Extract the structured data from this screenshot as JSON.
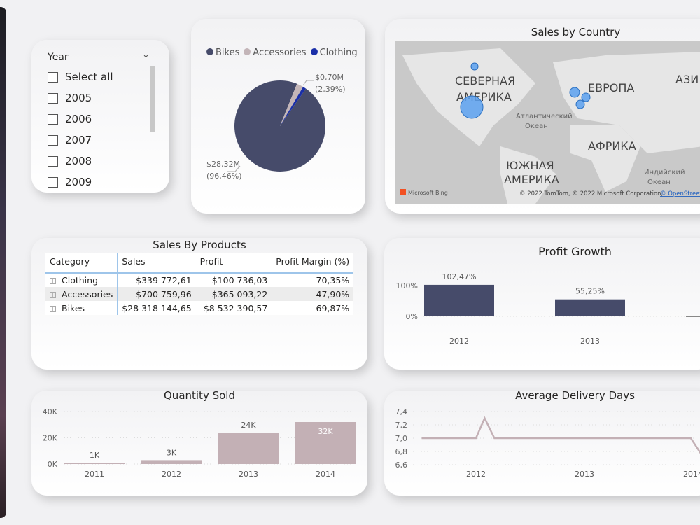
{
  "slicer": {
    "title": "Year",
    "items": [
      "Select all",
      "2005",
      "2006",
      "2007",
      "2008",
      "2009"
    ]
  },
  "pie": {
    "legend": [
      {
        "name": "Bikes",
        "color": "#464b6a"
      },
      {
        "name": "Accessories",
        "color": "#c3b5b8"
      },
      {
        "name": "Clothing",
        "color": "#1a2fa8"
      }
    ],
    "chart_data": {
      "type": "pie",
      "labels": [
        "Bikes",
        "Accessories",
        "Clothing"
      ],
      "values": [
        96.46,
        2.39,
        1.15
      ],
      "data_labels": [
        {
          "value": "$28,32M",
          "pct": "(96,46%)"
        },
        {
          "value": "$0,70M",
          "pct": "(2,39%)"
        }
      ]
    }
  },
  "map": {
    "title": "Sales by Country",
    "labels": [
      "СЕВЕРНАЯ",
      "АМЕРИКА",
      "ЕВРОПА",
      "АЗИ",
      "АФРИКА",
      "ЮЖНАЯ",
      "АМЕРИКА",
      "Атлантический",
      "Океан",
      "Индийский",
      "Океан"
    ],
    "brand": "Microsoft Bing",
    "copyright": "© 2022 TomTom, © 2022 Microsoft Corporation, ",
    "osm": "© OpenStreet",
    "bubble_color": "#5aa0ef"
  },
  "table": {
    "title": "Sales By Products",
    "columns": [
      "Category",
      "Sales",
      "Profit",
      "Profit Margin (%)"
    ],
    "rows": [
      [
        "Clothing",
        "$339 772,61",
        "$100 736,03",
        "70,35%"
      ],
      [
        "Accessories",
        "$700 759,96",
        "$365 093,22",
        "47,90%"
      ],
      [
        "Bikes",
        "$28 318 144,65",
        "$8 532 390,57",
        "69,87%"
      ]
    ]
  },
  "chart_data": [
    {
      "type": "bar",
      "title": "Profit Growth",
      "categories": [
        "2012",
        "2013"
      ],
      "values": [
        102.47,
        55.25
      ],
      "data_labels": [
        "102,47%",
        "55,25%"
      ],
      "yticks": [
        "100%",
        "0%"
      ],
      "ylim": [
        0,
        100
      ],
      "color": "#464b6a"
    },
    {
      "type": "bar",
      "title": "Quantity Sold",
      "categories": [
        "2011",
        "2012",
        "2013",
        "2014"
      ],
      "values": [
        1000,
        3000,
        24000,
        32000
      ],
      "data_labels": [
        "1K",
        "3K",
        "24K",
        "32K"
      ],
      "yticks": [
        "40K",
        "20K",
        "0K"
      ],
      "ylim": [
        0,
        40000
      ],
      "color": "#c3b0b5"
    },
    {
      "type": "line",
      "title": "Average Delivery Days",
      "x": [
        2011.5,
        2012.0,
        2012.08,
        2012.17,
        2013.98,
        2014.1
      ],
      "y": [
        7.0,
        7.0,
        7.3,
        7.0,
        7.0,
        6.7
      ],
      "xticks": [
        "2012",
        "2013",
        "2014"
      ],
      "yticks": [
        "7,4",
        "7,2",
        "7,0",
        "6,8",
        "6,6"
      ],
      "ylim": [
        6.6,
        7.4
      ],
      "color": "#c3b0b5"
    }
  ]
}
